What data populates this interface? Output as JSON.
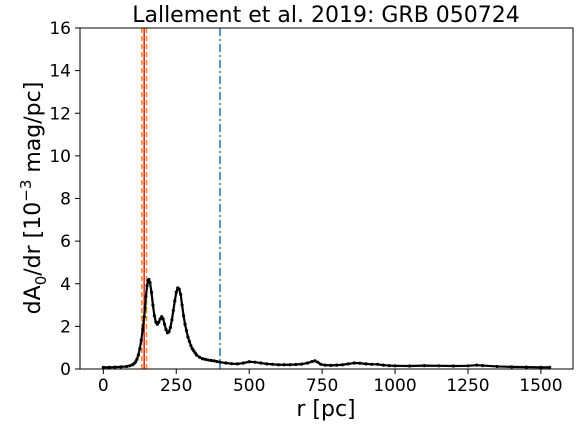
{
  "chart_data": {
    "type": "line",
    "title": "Lallement et al. 2019: GRB 050724",
    "xlabel": "r [pc]",
    "ylabel": "dA0/dr [10−3 mag/pc]",
    "ylabel_parts": {
      "a": "dA",
      "sub": "0",
      "b": "/dr [10",
      "sup": "−3",
      "c": " mag/pc]"
    },
    "xlim": [
      -80,
      1610
    ],
    "ylim": [
      0,
      16
    ],
    "x_ticks": [
      0,
      250,
      500,
      750,
      1000,
      1250,
      1500
    ],
    "y_ticks": [
      0,
      2,
      4,
      6,
      8,
      10,
      12,
      14,
      16
    ],
    "grid": false,
    "legend": "none",
    "series": [
      {
        "color": "#000000",
        "marker": "dot",
        "x": [
          0,
          20,
          40,
          60,
          80,
          90,
          100,
          105,
          110,
          115,
          120,
          125,
          130,
          135,
          140,
          143,
          146,
          150,
          153,
          156,
          160,
          165,
          170,
          175,
          180,
          185,
          190,
          195,
          200,
          205,
          210,
          215,
          220,
          225,
          230,
          235,
          240,
          245,
          250,
          255,
          260,
          265,
          270,
          275,
          280,
          285,
          290,
          295,
          300,
          305,
          310,
          315,
          320,
          330,
          340,
          350,
          360,
          370,
          380,
          390,
          400,
          420,
          440,
          460,
          480,
          500,
          520,
          540,
          560,
          580,
          600,
          620,
          640,
          660,
          680,
          700,
          715,
          725,
          735,
          745,
          760,
          780,
          800,
          820,
          840,
          860,
          880,
          900,
          920,
          940,
          960,
          980,
          1000,
          1050,
          1100,
          1150,
          1200,
          1250,
          1280,
          1300,
          1350,
          1400,
          1450,
          1500,
          1530
        ],
        "y": [
          0.08,
          0.08,
          0.09,
          0.1,
          0.12,
          0.15,
          0.2,
          0.25,
          0.33,
          0.45,
          0.65,
          0.95,
          1.35,
          1.85,
          2.45,
          2.9,
          3.4,
          3.9,
          4.15,
          4.2,
          4.05,
          3.6,
          3.0,
          2.5,
          2.2,
          2.1,
          2.2,
          2.35,
          2.45,
          2.35,
          2.1,
          1.85,
          1.7,
          1.75,
          1.95,
          2.3,
          2.75,
          3.2,
          3.6,
          3.8,
          3.75,
          3.5,
          3.0,
          2.5,
          2.1,
          1.8,
          1.5,
          1.3,
          1.1,
          0.95,
          0.85,
          0.75,
          0.65,
          0.55,
          0.48,
          0.45,
          0.42,
          0.4,
          0.38,
          0.35,
          0.32,
          0.28,
          0.25,
          0.24,
          0.28,
          0.34,
          0.32,
          0.28,
          0.24,
          0.22,
          0.2,
          0.2,
          0.2,
          0.21,
          0.23,
          0.28,
          0.35,
          0.38,
          0.32,
          0.22,
          0.18,
          0.17,
          0.18,
          0.2,
          0.24,
          0.28,
          0.27,
          0.24,
          0.22,
          0.22,
          0.18,
          0.16,
          0.15,
          0.14,
          0.16,
          0.15,
          0.14,
          0.15,
          0.18,
          0.16,
          0.12,
          0.1,
          0.09,
          0.08,
          0.08
        ]
      }
    ],
    "vlines": [
      {
        "x": 132,
        "color": "#ff7f0e",
        "style": "dashed"
      },
      {
        "x": 140,
        "color": "#d62728",
        "style": "solid"
      },
      {
        "x": 148,
        "color": "#ff7f0e",
        "style": "dashed"
      },
      {
        "x": 400,
        "color": "#1f77b4",
        "style": "dashdot"
      }
    ]
  }
}
